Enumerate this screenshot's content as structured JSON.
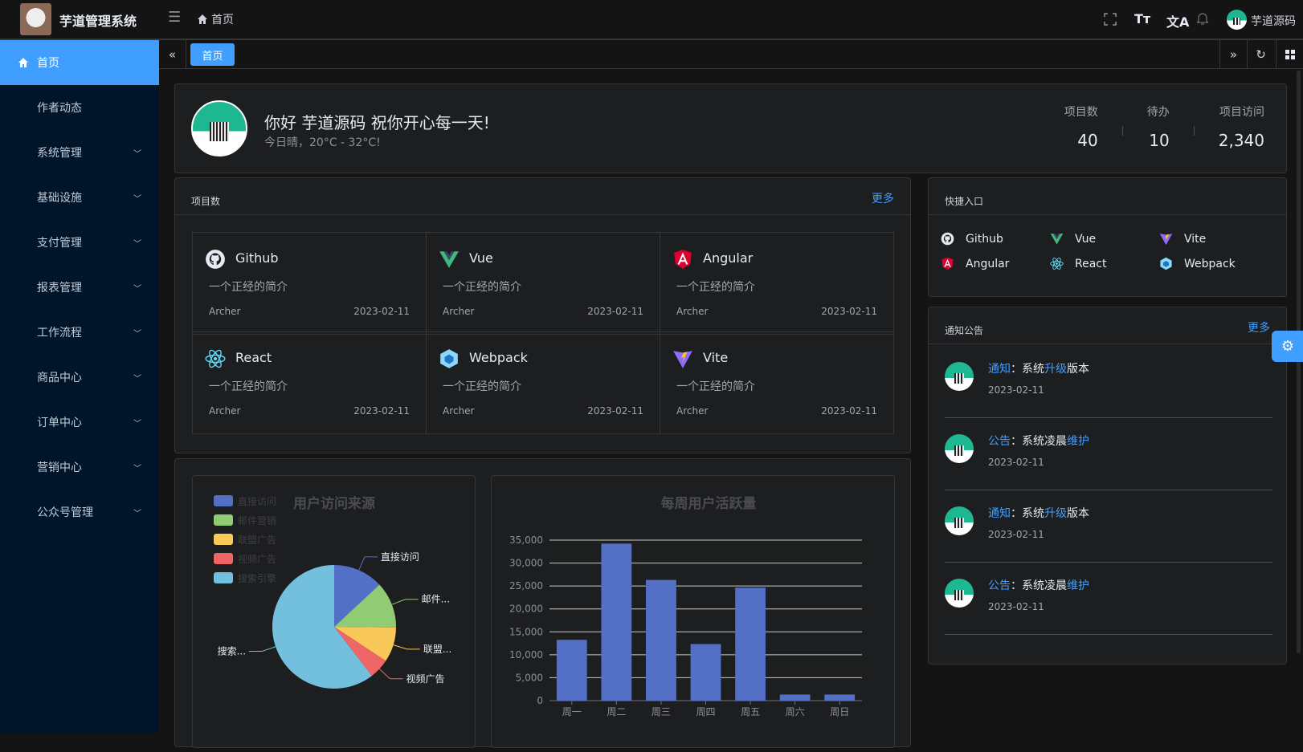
{
  "header": {
    "app_title": "芋道管理系统",
    "breadcrumb": "首页",
    "user_name": "芋道源码",
    "icons": [
      "menu-fold-icon",
      "home-icon",
      "fullscreen-icon",
      "font-size-icon",
      "translate-icon",
      "bell-icon"
    ]
  },
  "sidebar": {
    "items": [
      {
        "label": "首页",
        "active": true
      },
      {
        "label": "作者动态"
      },
      {
        "label": "系统管理",
        "expandable": true
      },
      {
        "label": "基础设施",
        "expandable": true
      },
      {
        "label": "支付管理",
        "expandable": true
      },
      {
        "label": "报表管理",
        "expandable": true
      },
      {
        "label": "工作流程",
        "expandable": true
      },
      {
        "label": "商品中心",
        "expandable": true
      },
      {
        "label": "订单中心",
        "expandable": true
      },
      {
        "label": "营销中心",
        "expandable": true
      },
      {
        "label": "公众号管理",
        "expandable": true
      }
    ]
  },
  "tabs": {
    "items": [
      {
        "label": "首页",
        "active": true
      }
    ]
  },
  "welcome": {
    "greeting": "你好 芋道源码 祝你开心每一天!",
    "weather": "今日晴，20°C - 32°C!",
    "stats": [
      {
        "label": "项目数",
        "value": "40"
      },
      {
        "label": "待办",
        "value": "10"
      },
      {
        "label": "项目访问",
        "value": "2,340"
      }
    ]
  },
  "projects": {
    "title": "项目数",
    "more": "更多",
    "items": [
      {
        "name": "Github",
        "desc": "一个正经的简介",
        "author": "Archer",
        "date": "2023-02-11",
        "icon": "github-icon"
      },
      {
        "name": "Vue",
        "desc": "一个正经的简介",
        "author": "Archer",
        "date": "2023-02-11",
        "icon": "vue-icon"
      },
      {
        "name": "Angular",
        "desc": "一个正经的简介",
        "author": "Archer",
        "date": "2023-02-11",
        "icon": "angular-icon"
      },
      {
        "name": "React",
        "desc": "一个正经的简介",
        "author": "Archer",
        "date": "2023-02-11",
        "icon": "react-icon"
      },
      {
        "name": "Webpack",
        "desc": "一个正经的简介",
        "author": "Archer",
        "date": "2023-02-11",
        "icon": "webpack-icon"
      },
      {
        "name": "Vite",
        "desc": "一个正经的简介",
        "author": "Archer",
        "date": "2023-02-11",
        "icon": "vite-icon"
      }
    ]
  },
  "shortcuts": {
    "title": "快捷入口",
    "items": [
      {
        "name": "Github",
        "icon": "github-icon"
      },
      {
        "name": "Vue",
        "icon": "vue-icon"
      },
      {
        "name": "Vite",
        "icon": "vite-icon"
      },
      {
        "name": "Angular",
        "icon": "angular-icon"
      },
      {
        "name": "React",
        "icon": "react-icon"
      },
      {
        "name": "Webpack",
        "icon": "webpack-icon"
      }
    ]
  },
  "notices": {
    "title": "通知公告",
    "more": "更多",
    "items": [
      {
        "type": "通知",
        "sep": "：",
        "p1": "系统",
        "h": "升级",
        "p2": "版本",
        "date": "2023-02-11"
      },
      {
        "type": "公告",
        "sep": "：",
        "p1": "系统凌晨",
        "h": "维护",
        "p2": "",
        "date": "2023-02-11"
      },
      {
        "type": "通知",
        "sep": "：",
        "p1": "系统",
        "h": "升级",
        "p2": "版本",
        "date": "2023-02-11"
      },
      {
        "type": "公告",
        "sep": "：",
        "p1": "系统凌晨",
        "h": "维护",
        "p2": "",
        "date": "2023-02-11"
      }
    ]
  },
  "colors": {
    "accent": "#409eff",
    "sidebar": "#001529"
  },
  "chart_data": [
    {
      "type": "pie",
      "title": "用户访问来源",
      "legend_position": "top-left",
      "categories": [
        "直接访问",
        "邮件营销",
        "联盟广告",
        "视频广告",
        "搜索引擎"
      ],
      "values": [
        335,
        310,
        234,
        135,
        1548
      ],
      "slice_labels": [
        "直接访问",
        "邮件...",
        "联盟...",
        "视频广告",
        "搜索..."
      ],
      "colors": [
        "#5470c6",
        "#91cc75",
        "#fac858",
        "#ee6666",
        "#73c0de"
      ]
    },
    {
      "type": "bar",
      "title": "每周用户活跃量",
      "categories": [
        "周一",
        "周二",
        "周三",
        "周四",
        "周五",
        "周六",
        "周日"
      ],
      "values": [
        13253,
        34235,
        26321,
        12340,
        24643,
        1322,
        1324
      ],
      "ylim": [
        0,
        35000
      ],
      "yticks": [
        "0",
        "5,000",
        "10,000",
        "15,000",
        "20,000",
        "25,000",
        "30,000",
        "35,000"
      ],
      "grid": true,
      "color": "#5470c6"
    }
  ]
}
